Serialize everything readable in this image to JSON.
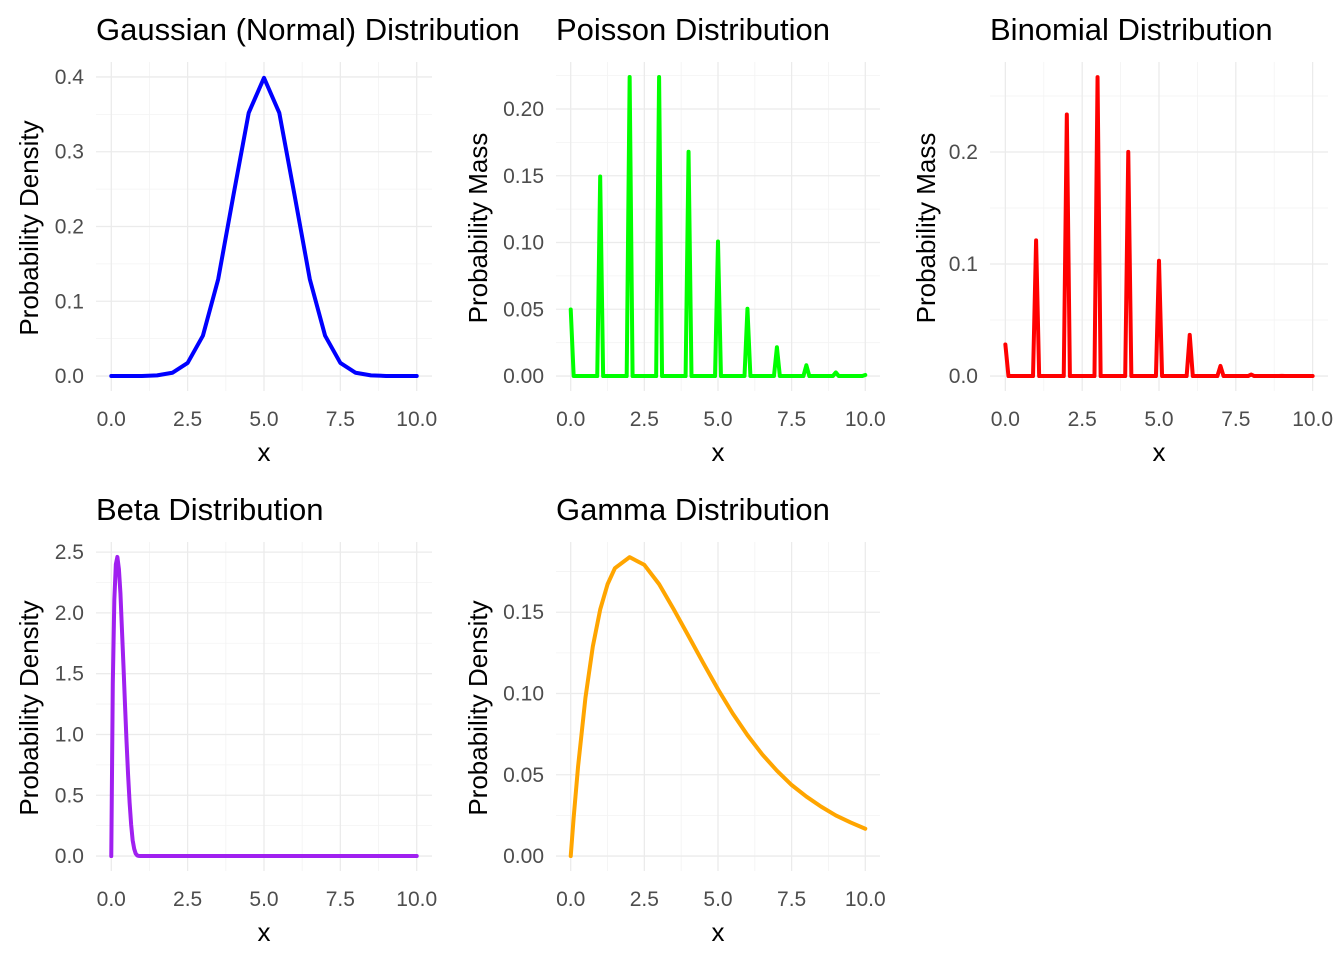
{
  "chart_data": [
    {
      "type": "line",
      "title": "Gaussian (Normal) Distribution",
      "xlabel": "x",
      "ylabel": "Probability Density",
      "color": "#0000ff",
      "xlim": [
        0,
        10
      ],
      "ylim": [
        0,
        0.4
      ],
      "xticks": [
        0,
        2.5,
        5,
        7.5,
        10
      ],
      "xtick_labels": [
        "0.0",
        "2.5",
        "5.0",
        "7.5",
        "10.0"
      ],
      "yticks": [
        0,
        0.1,
        0.2,
        0.3,
        0.4
      ],
      "ytick_labels": [
        "0.0",
        "0.1",
        "0.2",
        "0.3",
        "0.4"
      ],
      "grid": true,
      "x": [
        0,
        0.5,
        1,
        1.5,
        2,
        2.5,
        3,
        3.5,
        4,
        4.5,
        5,
        5.5,
        6,
        6.5,
        7,
        7.5,
        8,
        8.5,
        9,
        9.5,
        10
      ],
      "y": [
        0,
        0,
        0.0001,
        0.0009,
        0.0044,
        0.0175,
        0.054,
        0.1295,
        0.242,
        0.3521,
        0.3989,
        0.3521,
        0.242,
        0.1295,
        0.054,
        0.0175,
        0.0044,
        0.0009,
        0.0001,
        0,
        0
      ]
    },
    {
      "type": "line",
      "title": "Poisson Distribution",
      "xlabel": "x",
      "ylabel": "Probability Mass",
      "color": "#00ff00",
      "xlim": [
        0,
        10
      ],
      "ylim": [
        0,
        0.224
      ],
      "xticks": [
        0,
        2.5,
        5,
        7.5,
        10
      ],
      "xtick_labels": [
        "0.0",
        "2.5",
        "5.0",
        "7.5",
        "10.0"
      ],
      "yticks": [
        0,
        0.05,
        0.1,
        0.15,
        0.2
      ],
      "ytick_labels": [
        "0.00",
        "0.05",
        "0.10",
        "0.15",
        "0.20"
      ],
      "grid": true,
      "x": [
        0,
        0.1,
        0.9,
        1,
        1.1,
        1.9,
        2,
        2.1,
        2.9,
        3,
        3.1,
        3.9,
        4,
        4.1,
        4.9,
        5,
        5.1,
        5.9,
        6,
        6.1,
        6.9,
        7,
        7.1,
        7.9,
        8,
        8.1,
        8.9,
        9,
        9.1,
        9.9,
        10
      ],
      "y": [
        0.0498,
        0,
        0,
        0.1494,
        0,
        0,
        0.224,
        0,
        0,
        0.224,
        0,
        0,
        0.168,
        0,
        0,
        0.1008,
        0,
        0,
        0.0504,
        0,
        0,
        0.0216,
        0,
        0,
        0.0081,
        0,
        0,
        0.0027,
        0,
        0,
        0.0008
      ]
    },
    {
      "type": "line",
      "title": "Binomial Distribution",
      "xlabel": "x",
      "ylabel": "Probability Mass",
      "color": "#ff0000",
      "xlim": [
        0,
        10
      ],
      "ylim": [
        0,
        0.267
      ],
      "xticks": [
        0,
        2.5,
        5,
        7.5,
        10
      ],
      "xtick_labels": [
        "0.0",
        "2.5",
        "5.0",
        "7.5",
        "10.0"
      ],
      "yticks": [
        0,
        0.1,
        0.2
      ],
      "ytick_labels": [
        "0.0",
        "0.1",
        "0.2"
      ],
      "grid": true,
      "x": [
        0,
        0.1,
        0.9,
        1,
        1.1,
        1.9,
        2,
        2.1,
        2.9,
        3,
        3.1,
        3.9,
        4,
        4.1,
        4.9,
        5,
        5.1,
        5.9,
        6,
        6.1,
        6.9,
        7,
        7.1,
        7.9,
        8,
        8.1,
        8.9,
        9,
        9.1,
        9.9,
        10
      ],
      "y": [
        0.0282,
        0,
        0,
        0.1211,
        0,
        0,
        0.2335,
        0,
        0,
        0.2668,
        0,
        0,
        0.2001,
        0,
        0,
        0.1029,
        0,
        0,
        0.0368,
        0,
        0,
        0.009,
        0,
        0,
        0.0014,
        0,
        0,
        0.0001,
        0,
        0,
        0
      ]
    },
    {
      "type": "line",
      "title": "Beta Distribution",
      "xlabel": "x",
      "ylabel": "Probability Density",
      "color": "#a020f0",
      "xlim": [
        0,
        10
      ],
      "ylim": [
        0,
        2.46
      ],
      "xticks": [
        0,
        2.5,
        5,
        7.5,
        10
      ],
      "xtick_labels": [
        "0.0",
        "2.5",
        "5.0",
        "7.5",
        "10.0"
      ],
      "yticks": [
        0,
        0.5,
        1,
        1.5,
        2,
        2.5
      ],
      "ytick_labels": [
        "0.0",
        "0.5",
        "1.0",
        "1.5",
        "2.0",
        "2.5"
      ],
      "grid": true,
      "x": [
        0,
        0.05,
        0.1,
        0.15,
        0.2,
        0.25,
        0.3,
        0.35,
        0.4,
        0.45,
        0.5,
        0.55,
        0.6,
        0.65,
        0.7,
        0.75,
        0.8,
        0.85,
        0.9,
        0.95,
        1,
        10
      ],
      "y": [
        0,
        1.42,
        2.11,
        2.4,
        2.46,
        2.36,
        2.16,
        1.86,
        1.56,
        1.24,
        0.94,
        0.67,
        0.44,
        0.26,
        0.13,
        0.06,
        0.02,
        0.005,
        0.001,
        0,
        0,
        0
      ]
    },
    {
      "type": "line",
      "title": "Gamma Distribution",
      "xlabel": "x",
      "ylabel": "Probability Density",
      "color": "#ffa500",
      "xlim": [
        0,
        10
      ],
      "ylim": [
        0,
        0.184
      ],
      "xticks": [
        0,
        2.5,
        5,
        7.5,
        10
      ],
      "xtick_labels": [
        "0.0",
        "2.5",
        "5.0",
        "7.5",
        "10.0"
      ],
      "yticks": [
        0,
        0.05,
        0.1,
        0.15
      ],
      "ytick_labels": [
        "0.00",
        "0.05",
        "0.10",
        "0.15"
      ],
      "grid": true,
      "x": [
        0,
        0.1,
        0.25,
        0.5,
        0.75,
        1,
        1.25,
        1.5,
        2,
        2.5,
        3,
        3.5,
        4,
        4.5,
        5,
        5.5,
        6,
        6.5,
        7,
        7.5,
        8,
        8.5,
        9,
        9.5,
        10
      ],
      "y": [
        0,
        0.0237,
        0.0552,
        0.0974,
        0.1289,
        0.1516,
        0.1672,
        0.1771,
        0.1839,
        0.1791,
        0.1673,
        0.1517,
        0.1353,
        0.1187,
        0.1026,
        0.0877,
        0.0744,
        0.0626,
        0.0525,
        0.0437,
        0.0366,
        0.0304,
        0.025,
        0.0207,
        0.0168
      ]
    }
  ]
}
